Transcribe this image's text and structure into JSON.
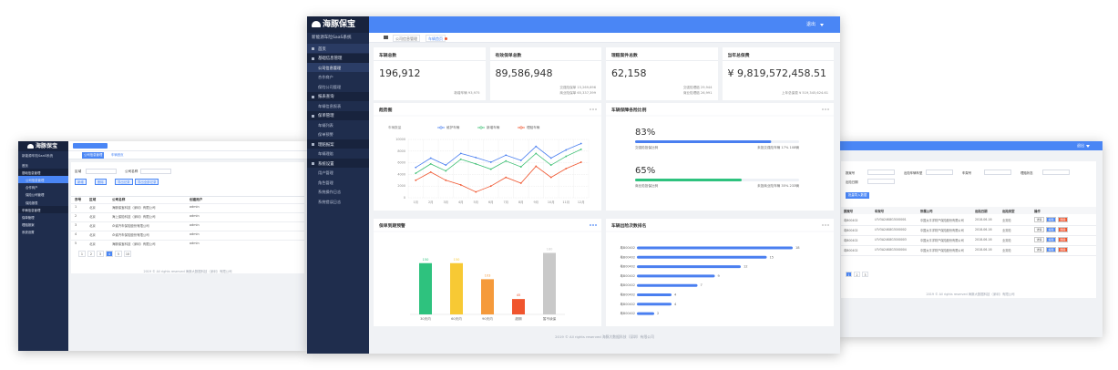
{
  "left": {
    "brand": "海豚保宝",
    "system": "新能源车险SaaS系统",
    "menu": [
      "首页",
      "基础信息管理",
      "公司信息管理",
      "合作商户",
      "保险公司管理",
      "保险报表",
      "车辆信息管理",
      "保单管理",
      "理赔报案",
      "系统设置"
    ],
    "tabs": [
      "公司信息管理",
      "车辆首页"
    ],
    "filters": [
      "区域",
      "公司名称"
    ],
    "buttons": [
      "新增",
      "删除",
      "导出记录",
      "导出全部记录"
    ],
    "table": {
      "headers": [
        "序号",
        "区域",
        "公司名称",
        "创建用户"
      ],
      "rows": [
        [
          "1",
          "北京",
          "海豚保宝科技（深圳）有限公司",
          "admin"
        ],
        [
          "2",
          "北京",
          "海上保险科技（深圳）有限公司",
          "admin"
        ],
        [
          "3",
          "北京",
          "众诚汽车保险股份有限公司",
          "admin"
        ],
        [
          "4",
          "北京",
          "众诚汽车保险股份有限公司",
          "admin"
        ],
        [
          "5",
          "北京",
          "海豚保宝科技（深圳）有限公司",
          "admin"
        ]
      ]
    },
    "pagination": [
      "1",
      "2",
      "3",
      "4",
      "5",
      "10"
    ],
    "footer": "2019 © All rights reserved 海豚大数据科技（深圳）有限公司"
  },
  "right": {
    "user": "退出",
    "filters": [
      "报案号",
      "出险车辆车型",
      "车架号",
      "理赔状态",
      "出险日期"
    ],
    "button": "批量导入数据",
    "table": {
      "headers": [
        "报案号",
        "车架号",
        "所属公司",
        "出险日期",
        "出险类型",
        "操作"
      ],
      "rows": [
        [
          "粤B00402",
          "LFV3A24K8G3000001",
          "中国太平洋财产保险股份有限公司",
          "2018-06-16",
          "业务险"
        ],
        [
          "粤B00402",
          "LFV3A24K8G3000002",
          "中国太平洋财产保险股份有限公司",
          "2018-06-16",
          "业务险"
        ],
        [
          "粤B00402",
          "LFV3A24K8G3000003",
          "中国太平洋财产保险股份有限公司",
          "2018-06-16",
          "业务险"
        ],
        [
          "粤B00402",
          "LFV3A24K8G3000004",
          "中国太平洋财产保险股份有限公司",
          "2018-06-16",
          "业务险"
        ]
      ]
    },
    "actions": [
      "详情",
      "编辑",
      "删除"
    ],
    "pagination": [
      "1",
      "2",
      "3"
    ],
    "footer": "2019 © All rights reserved 海豚大数据科技（深圳）有限公司"
  },
  "center": {
    "brand": "海豚保宝",
    "system": "新能源车险SaaS系统",
    "user": "退出",
    "menu": [
      {
        "label": "首页"
      },
      {
        "label": "基础信息管理",
        "children": [
          "公司信息管理",
          "合作商户",
          "保险公司管理"
        ]
      },
      {
        "label": "报表查询",
        "children": [
          "车辆信息报表"
        ]
      },
      {
        "label": "保单管理",
        "children": [
          "车辆列表",
          "保单预警"
        ]
      },
      {
        "label": "理赔报案",
        "children": [
          "车辆理赔"
        ]
      },
      {
        "label": "系统设置",
        "children": [
          "用户管理",
          "角色管理",
          "系统操作日志",
          "系统错误日志"
        ]
      }
    ],
    "breadcrumb": [
      "公司信息管理",
      "车辆首页"
    ],
    "kpis": [
      {
        "title": "车辆总数",
        "value": "196,912",
        "notes": [
          "新增车辆 93,975"
        ]
      },
      {
        "title": "有效保单总数",
        "value": "89,586,948",
        "notes": [
          "交强险保单 15,269,696",
          "商业险保单 65,337,399"
        ]
      },
      {
        "title": "理赔案件总数",
        "value": "62,158",
        "notes": [
          "交强险理赔 29,944",
          "商业险理赔 26,991"
        ]
      },
      {
        "title": "当年总保费",
        "value": "¥ 9,819,572,458.51",
        "notes": [
          "上年总保费 ¥ 519,345,624.61"
        ]
      }
    ],
    "footer": "2019 © All rights reserved 海豚大数据科技（深圳）有限公司"
  },
  "chart_data": [
    {
      "type": "line",
      "title": "趋势图",
      "y_label": "车辆数量",
      "categories": [
        "1月",
        "2月",
        "3月",
        "4月",
        "5月",
        "6月",
        "7月",
        "8月",
        "9月",
        "10月",
        "11月",
        "12月"
      ],
      "series": [
        {
          "name": "维护车辆",
          "color": "#4a7ff0",
          "values": [
            5200,
            6800,
            5600,
            7600,
            6900,
            6100,
            7300,
            6400,
            8800,
            6800,
            8200,
            9300
          ]
        },
        {
          "name": "新增车辆",
          "color": "#3cbf73",
          "values": [
            4200,
            5800,
            4600,
            6600,
            5800,
            4900,
            6300,
            5300,
            7600,
            5600,
            7100,
            8300
          ]
        },
        {
          "name": "理赔车辆",
          "color": "#f0552e",
          "values": [
            3000,
            4400,
            3000,
            2200,
            1000,
            2000,
            3500,
            2500,
            5400,
            3500,
            5000,
            6100
          ]
        }
      ],
      "ylim": [
        0,
        10000
      ],
      "yticks": [
        0,
        2000,
        4000,
        6000,
        8000,
        10000
      ],
      "grid": true
    },
    {
      "type": "progress",
      "title": "车辆保障各险比例",
      "categories": [
        "交强险投保比例",
        "商业险投保比例"
      ],
      "values": [
        83,
        65
      ],
      "value_labels": [
        "83%",
        "65%"
      ],
      "notes": [
        "未投交强险车辆 17% 108辆",
        "未投商业险车辆 35% 233辆"
      ],
      "colors": [
        "#4a7ff0",
        "#2ec27e"
      ],
      "xlim": [
        0,
        100
      ]
    },
    {
      "type": "bar",
      "title": "保单到期预警",
      "categories": [
        "30天内",
        "60天内",
        "90天内",
        "超期",
        "暂不续保"
      ],
      "values": [
        150,
        150,
        103,
        45,
        180
      ],
      "colors": [
        "#2ec27e",
        "#f7c934",
        "#f59a3b",
        "#f0552e",
        "#c9c9c9"
      ],
      "ylim": [
        0,
        200
      ]
    },
    {
      "type": "hbar",
      "title": "车辆出险次数排名",
      "categories": [
        "粤B00402",
        "粤B00402",
        "粤B00402",
        "粤B00402",
        "粤B00402",
        "粤B00402",
        "粤B00402",
        "粤B00402"
      ],
      "values": [
        18,
        15,
        12,
        9,
        7,
        4,
        4,
        2
      ],
      "color": "#4a7ff0",
      "xlim": [
        0,
        20
      ]
    }
  ]
}
